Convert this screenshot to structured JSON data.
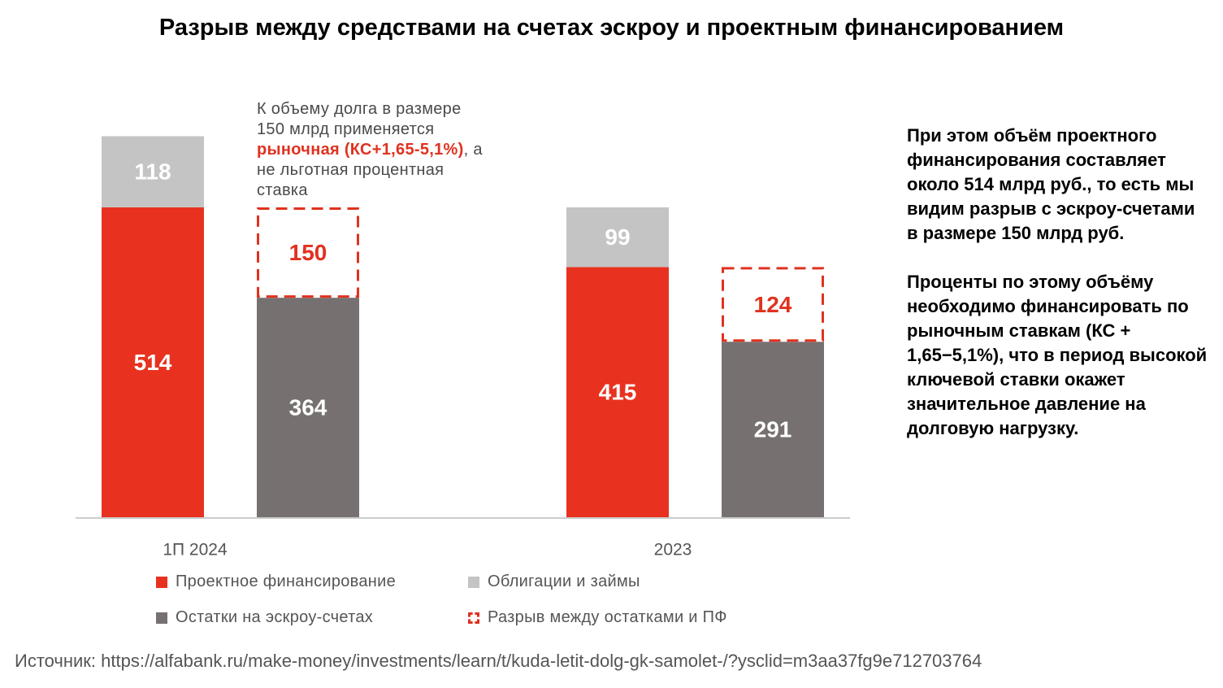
{
  "title": "Разрыв между средствами на счетах эскроу и проектным финансированием",
  "annotation": {
    "line1": "К объему долга в размере",
    "line2": "150 млрд применяется",
    "highlight": "рыночная (КС+1,65-5,1%)",
    "after_highlight": ", а",
    "line4": "не льготная процентная",
    "line5": "ставка"
  },
  "side_text": {
    "p1": "При этом объём проектного финансирования составляет около 514 млрд руб., то есть мы видим разрыв с эскроу-счетами в размере 150 млрд руб.",
    "p2": "Проценты по этому объёму необходимо финансировать по рыночным ставкам (КС + 1,65−5,1%), что в период высокой ключевой ставки окажет значительное давление на долговую нагрузку."
  },
  "legend": {
    "pf": "Проектное финансирование",
    "bonds": "Облигации и займы",
    "escrow": "Остатки на эскроу-счетах",
    "gap": "Разрыв между остатками и ПФ"
  },
  "source": "Источник: https://alfabank.ru/make-money/investments/learn/t/kuda-letit-dolg-gk-samolet-/?ysclid=m3aa37fg9e712703764",
  "colors": {
    "pf": "#e8321f",
    "bonds": "#c4c4c4",
    "escrow": "#767170",
    "gap": "#e0321f",
    "baseline": "#cccccc"
  },
  "chart_data": {
    "type": "bar",
    "categories": [
      "1П 2024",
      "2023"
    ],
    "series": [
      {
        "name": "Проектное финансирование",
        "values": [
          514,
          415
        ]
      },
      {
        "name": "Облигации и займы",
        "values": [
          118,
          99
        ]
      },
      {
        "name": "Остатки на эскроу-счетах",
        "values": [
          364,
          291
        ]
      },
      {
        "name": "Разрыв между остатками и ПФ",
        "values": [
          150,
          124
        ]
      }
    ],
    "stacking": "bar 1 = Проектное финансирование + Облигации и займы; bar 2 = Остатки на эскроу-счетах + Разрыв между остатками и ПФ",
    "legend_position": "bottom",
    "grid": false
  }
}
